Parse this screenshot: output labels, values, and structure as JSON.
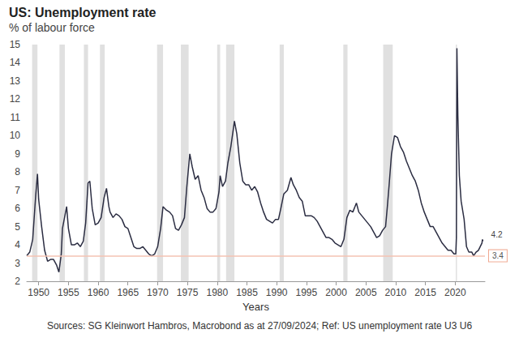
{
  "chart_data": {
    "type": "line",
    "title": "US: Unemployment rate",
    "subtitle": "% of labour force",
    "x_label": "Years",
    "source": "Sources: SG Kleinwort Hambros, Macrobond as at 27/09/2024; Ref: US unemployment rate U3 U6",
    "color": "#2b2d42",
    "grid": false,
    "xlim": [
      1948,
      2025
    ],
    "xticks": [
      1950,
      1955,
      1960,
      1965,
      1970,
      1975,
      1980,
      1985,
      1990,
      1995,
      2000,
      2005,
      2010,
      2015,
      2020
    ],
    "ylim": [
      2,
      15
    ],
    "yticks": [
      2,
      3,
      4,
      5,
      6,
      7,
      8,
      9,
      10,
      11,
      12,
      13,
      14,
      15
    ],
    "x": [
      1948.0,
      1948.5,
      1949.0,
      1949.5,
      1949.8,
      1950.0,
      1950.5,
      1951.0,
      1951.5,
      1952.0,
      1952.5,
      1953.0,
      1953.4,
      1953.8,
      1954.0,
      1954.7,
      1955.0,
      1955.5,
      1956.0,
      1956.5,
      1957.0,
      1957.5,
      1957.9,
      1958.3,
      1958.6,
      1959.0,
      1959.5,
      1960.0,
      1960.5,
      1961.0,
      1961.4,
      1961.8,
      1962.0,
      1962.5,
      1963.0,
      1963.5,
      1964.0,
      1964.5,
      1965.0,
      1965.5,
      1966.0,
      1966.5,
      1967.0,
      1967.5,
      1968.0,
      1968.5,
      1969.0,
      1969.5,
      1970.0,
      1970.5,
      1970.9,
      1971.5,
      1972.0,
      1972.5,
      1973.0,
      1973.5,
      1974.0,
      1974.5,
      1974.9,
      1975.4,
      1975.8,
      1976.3,
      1976.8,
      1977.3,
      1977.8,
      1978.3,
      1978.8,
      1979.3,
      1979.8,
      1980.3,
      1980.5,
      1980.9,
      1981.4,
      1981.8,
      1982.3,
      1982.9,
      1983.3,
      1983.8,
      1984.3,
      1984.8,
      1985.3,
      1985.8,
      1986.3,
      1986.8,
      1987.3,
      1987.8,
      1988.3,
      1988.8,
      1989.3,
      1989.8,
      1990.3,
      1990.7,
      1991.2,
      1991.8,
      1992.4,
      1992.8,
      1993.3,
      1993.8,
      1994.3,
      1994.8,
      1995.3,
      1995.8,
      1996.3,
      1996.8,
      1997.3,
      1997.8,
      1998.3,
      1998.8,
      1999.3,
      1999.8,
      2000.3,
      2000.8,
      2001.3,
      2001.8,
      2002.3,
      2002.8,
      2003.4,
      2003.8,
      2004.3,
      2004.8,
      2005.3,
      2005.8,
      2006.3,
      2006.8,
      2007.3,
      2007.8,
      2008.3,
      2008.6,
      2008.9,
      2009.3,
      2009.8,
      2010.3,
      2010.8,
      2011.3,
      2011.8,
      2012.3,
      2012.8,
      2013.3,
      2013.8,
      2014.3,
      2014.8,
      2015.3,
      2015.8,
      2016.3,
      2016.8,
      2017.3,
      2017.8,
      2018.3,
      2018.8,
      2019.3,
      2019.8,
      2020.1,
      2020.2,
      2020.29,
      2020.45,
      2020.7,
      2021.0,
      2021.5,
      2021.9,
      2022.3,
      2022.8,
      2023.1,
      2023.5,
      2023.9,
      2024.2,
      2024.5,
      2024.58,
      2024.67
    ],
    "values": [
      3.4,
      3.6,
      4.3,
      6.7,
      7.9,
      6.5,
      5.0,
      3.7,
      3.1,
      3.2,
      3.2,
      2.9,
      2.5,
      3.5,
      4.9,
      6.1,
      4.9,
      4.0,
      4.0,
      4.1,
      3.9,
      4.2,
      5.2,
      7.4,
      7.5,
      6.0,
      5.1,
      5.2,
      5.5,
      6.6,
      7.1,
      6.1,
      5.8,
      5.5,
      5.7,
      5.6,
      5.4,
      5.0,
      4.9,
      4.4,
      3.9,
      3.8,
      3.8,
      3.9,
      3.7,
      3.5,
      3.4,
      3.5,
      3.9,
      4.9,
      6.1,
      5.9,
      5.8,
      5.6,
      4.9,
      4.8,
      5.1,
      5.5,
      7.2,
      9.0,
      8.3,
      7.6,
      7.8,
      7.0,
      6.6,
      6.0,
      5.8,
      5.8,
      6.0,
      6.9,
      7.8,
      7.2,
      7.5,
      8.5,
      9.4,
      10.8,
      10.1,
      8.5,
      7.5,
      7.3,
      7.3,
      7.0,
      7.2,
      6.9,
      6.3,
      5.8,
      5.4,
      5.3,
      5.2,
      5.4,
      5.4,
      6.0,
      6.8,
      7.0,
      7.7,
      7.3,
      7.0,
      6.6,
      6.4,
      5.6,
      5.6,
      5.6,
      5.5,
      5.3,
      5.0,
      4.7,
      4.4,
      4.4,
      4.3,
      4.1,
      4.0,
      3.9,
      4.3,
      5.5,
      5.9,
      5.8,
      6.3,
      5.8,
      5.6,
      5.4,
      5.2,
      5.0,
      4.7,
      4.4,
      4.5,
      4.8,
      5.0,
      6.1,
      7.3,
      9.0,
      10.0,
      9.9,
      9.4,
      9.1,
      8.6,
      8.2,
      7.8,
      7.5,
      7.0,
      6.3,
      5.8,
      5.4,
      5.0,
      5.0,
      4.7,
      4.4,
      4.1,
      3.9,
      3.7,
      3.7,
      3.5,
      3.5,
      4.4,
      14.8,
      11.1,
      7.8,
      6.4,
      5.4,
      3.9,
      3.6,
      3.6,
      3.4,
      3.6,
      3.7,
      3.9,
      4.1,
      4.3,
      4.2
    ],
    "recessions": [
      [
        1948.9,
        1949.8
      ],
      [
        1953.5,
        1954.4
      ],
      [
        1957.6,
        1958.3
      ],
      [
        1960.3,
        1961.1
      ],
      [
        1969.9,
        1970.9
      ],
      [
        1973.9,
        1975.2
      ],
      [
        1980.0,
        1980.5
      ],
      [
        1981.5,
        1982.9
      ],
      [
        1990.5,
        1991.2
      ],
      [
        2001.2,
        2001.9
      ],
      [
        2007.9,
        2009.5
      ],
      [
        2020.1,
        2020.3
      ]
    ],
    "reference_line": {
      "value": 3.4,
      "label": "3.4"
    },
    "annotations": [
      {
        "x": 2024.67,
        "y": 4.2,
        "label": "4.2"
      }
    ]
  }
}
